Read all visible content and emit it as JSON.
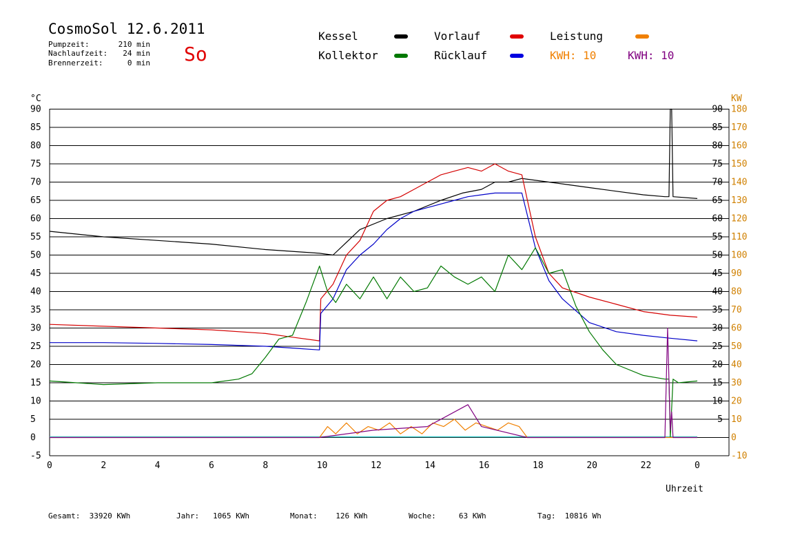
{
  "header": {
    "title": "CosmoSol 12.6.2011",
    "day": "So",
    "stats": [
      {
        "label": "Pumpzeit:",
        "value": "210 min"
      },
      {
        "label": "Nachlaufzeit:",
        "value": "24 min"
      },
      {
        "label": "Brennerzeit:",
        "value": "0 min"
      }
    ]
  },
  "legend": {
    "kessel": "Kessel",
    "vorlauf": "Vorlauf",
    "leistung": "Leistung",
    "kollektor": "Kollektor",
    "ruecklauf": "Rücklauf",
    "kwh1": "KWH: 10",
    "kwh2": "KWH: 10"
  },
  "footer": {
    "gesamt": "Gesamt:  33920 KWh",
    "jahr": "Jahr:   1065 KWh",
    "monat": "Monat:    126 KWh",
    "woche": "Woche:     63 KWh",
    "tag": "Tag:  10816 Wh"
  },
  "colors": {
    "kessel": "#000000",
    "vorlauf": "#d40000",
    "ruecklauf": "#0000c8",
    "kollektor": "#007800",
    "leistung": "#f08000",
    "kwh2": "#800080",
    "baseline": "#40d0d0"
  },
  "chart_data": {
    "type": "line",
    "xlabel": "Uhrzeit",
    "ylabel_left": "°C",
    "ylabel_right": "KW",
    "x_ticks": [
      "0",
      "2",
      "4",
      "6",
      "8",
      "10",
      "12",
      "14",
      "16",
      "18",
      "20",
      "22",
      "0"
    ],
    "y_left_ticks": [
      "-5",
      "0",
      "5",
      "10",
      "15",
      "20",
      "25",
      "30",
      "35",
      "40",
      "45",
      "50",
      "55",
      "60",
      "65",
      "70",
      "75",
      "80",
      "85",
      "90"
    ],
    "y_right_deg_ticks": [
      "5",
      "10",
      "15",
      "20",
      "25",
      "30",
      "35",
      "40",
      "45",
      "50",
      "55",
      "60",
      "65",
      "70",
      "75",
      "80",
      "85",
      "90"
    ],
    "y_right_kw_ticks": [
      "-10",
      "0",
      "10",
      "20",
      "30",
      "40",
      "50",
      "60",
      "70",
      "80",
      "90",
      "100",
      "110",
      "120",
      "130",
      "140",
      "150",
      "160",
      "170",
      "180"
    ],
    "xlim": [
      0,
      24
    ],
    "ylim": [
      -5,
      95
    ],
    "series": [
      {
        "name": "Kessel",
        "x": [
          0,
          2,
          4,
          6,
          8,
          10,
          10.5,
          11.5,
          12.5,
          13.5,
          14.5,
          15.3,
          16,
          16.5,
          17,
          17.5,
          18,
          19,
          20,
          21,
          22,
          22.8,
          22.95,
          23.0,
          23.05,
          23.1,
          24
        ],
        "y": [
          56.5,
          55,
          54,
          53,
          51.5,
          50.5,
          50,
          57,
          60,
          62,
          65,
          67,
          68,
          70,
          70,
          71,
          70.5,
          69.5,
          68.5,
          67.5,
          66.5,
          66,
          66,
          90,
          90,
          66,
          65.5
        ]
      },
      {
        "name": "Vorlauf",
        "x": [
          0,
          2,
          4,
          6,
          8,
          9,
          10,
          10.05,
          10.5,
          11,
          11.5,
          12,
          12.5,
          13,
          13.5,
          14,
          14.5,
          15,
          15.5,
          16,
          16.5,
          17,
          17.5,
          18,
          18.5,
          19,
          20,
          21,
          22,
          23,
          24
        ],
        "y": [
          31,
          30.5,
          30,
          29.5,
          28.5,
          27.5,
          26.5,
          38,
          42,
          50,
          54,
          62,
          65,
          66,
          68,
          70,
          72,
          73,
          74,
          73,
          75,
          73,
          72,
          55,
          45,
          41,
          38.5,
          36.5,
          34.5,
          33.5,
          33
        ]
      },
      {
        "name": "Rücklauf",
        "x": [
          0,
          2,
          4,
          6,
          8,
          9,
          10,
          10.05,
          10.5,
          11,
          11.5,
          12,
          12.5,
          13,
          13.5,
          14,
          14.5,
          15,
          15.5,
          16,
          16.5,
          17,
          17.5,
          18,
          18.5,
          19,
          20,
          21,
          22,
          23,
          24
        ],
        "y": [
          26,
          26,
          25.8,
          25.5,
          25,
          24.5,
          24,
          34,
          38,
          46,
          50,
          53,
          57,
          60,
          62,
          63,
          64,
          65,
          66,
          66.5,
          67,
          67,
          67,
          52,
          43,
          38,
          31.5,
          29,
          28,
          27.2,
          26.5
        ]
      },
      {
        "name": "Kollektor",
        "x": [
          0,
          2,
          4,
          6,
          7,
          7.5,
          8,
          8.5,
          9,
          9.5,
          10,
          10.3,
          10.6,
          11,
          11.5,
          12,
          12.5,
          13,
          13.5,
          14,
          14.5,
          15,
          15.5,
          16,
          16.5,
          17,
          17.5,
          18,
          18.5,
          19,
          19.5,
          20,
          20.5,
          21,
          22,
          22.8,
          22.95,
          23.0,
          23.1,
          23.3,
          24
        ],
        "y": [
          15.5,
          14.5,
          15,
          15,
          16,
          17.5,
          22,
          27,
          28,
          37,
          47,
          40,
          37,
          42,
          38,
          44,
          38,
          44,
          40,
          41,
          47,
          44,
          42,
          44,
          40,
          50,
          46,
          52,
          45,
          46,
          36,
          29,
          24,
          20,
          17,
          16,
          16,
          0,
          16,
          15,
          15.5
        ]
      },
      {
        "name": "Leistung",
        "x": [
          0,
          10,
          10.3,
          10.6,
          11,
          11.4,
          11.8,
          12.2,
          12.6,
          13,
          13.4,
          13.8,
          14.2,
          14.6,
          15,
          15.4,
          15.8,
          16.2,
          16.6,
          17,
          17.4,
          17.7,
          24
        ],
        "y": [
          0,
          0,
          3,
          1,
          4,
          1,
          3,
          2,
          4,
          1,
          3,
          1,
          4,
          3,
          5,
          2,
          4,
          3,
          2,
          4,
          3,
          0,
          0
        ]
      },
      {
        "name": "KWH: 10",
        "x": [
          0,
          10,
          12,
          14,
          15.5,
          16,
          17.7,
          22.8,
          22.9,
          23.0,
          23.05,
          23.1,
          24
        ],
        "y": [
          0,
          0,
          2,
          3,
          9,
          3,
          0,
          0,
          30,
          2,
          7,
          0,
          0
        ]
      }
    ]
  }
}
